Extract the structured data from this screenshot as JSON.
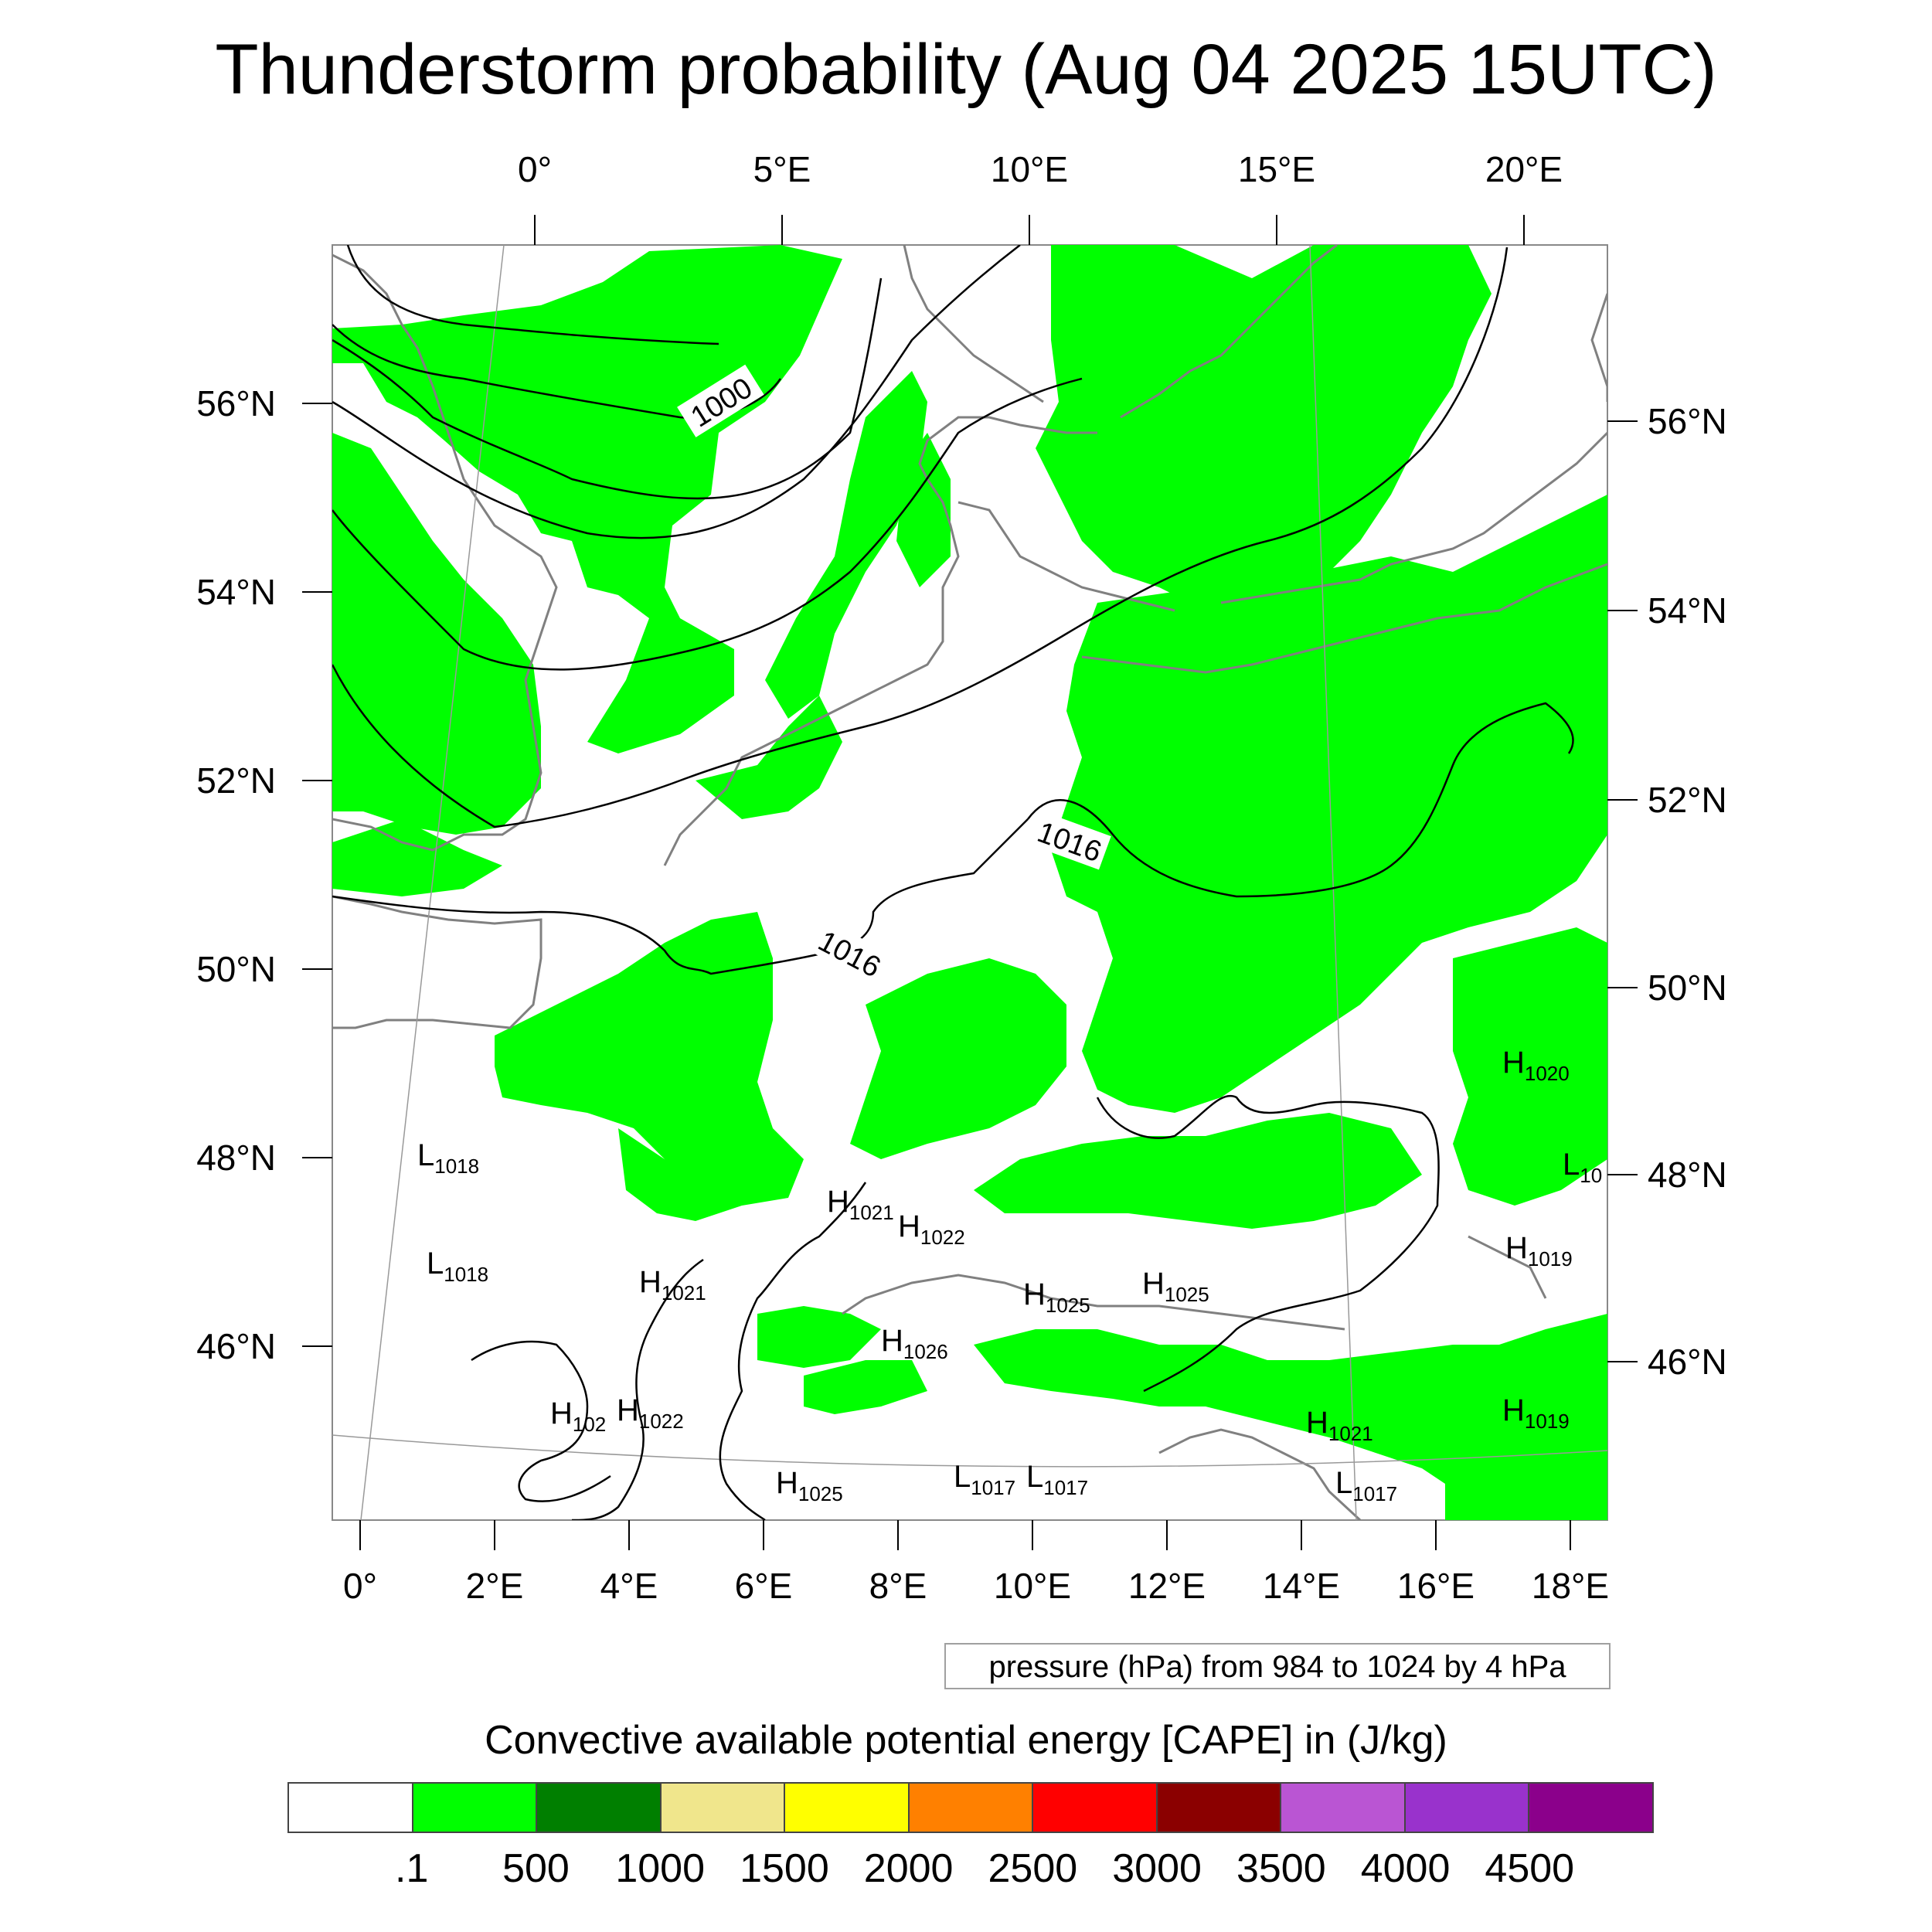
{
  "title": "Thunderstorm probability (Aug 04 2025 15UTC)",
  "axes": {
    "top_lon_labels": [
      "0°",
      "5°E",
      "10°E",
      "15°E",
      "20°E"
    ],
    "bottom_lon_labels": [
      "0°",
      "2°E",
      "4°E",
      "6°E",
      "8°E",
      "10°E",
      "12°E",
      "14°E",
      "16°E",
      "18°E"
    ],
    "left_lat_labels": [
      "56°N",
      "54°N",
      "52°N",
      "50°N",
      "48°N",
      "46°N"
    ],
    "right_lat_labels": [
      "56°N",
      "54°N",
      "52°N",
      "50°N",
      "48°N",
      "46°N"
    ]
  },
  "contour_labels": [
    "1000",
    "1016",
    "1016"
  ],
  "pressure_markers": [
    {
      "letter": "L",
      "value": "1018"
    },
    {
      "letter": "L",
      "value": "1018"
    },
    {
      "letter": "H",
      "value": "1021"
    },
    {
      "letter": "H",
      "value": "1022"
    },
    {
      "letter": "H",
      "value": "1021"
    },
    {
      "letter": "H",
      "value": "1025"
    },
    {
      "letter": "H",
      "value": "1025"
    },
    {
      "letter": "H",
      "value": "1026"
    },
    {
      "letter": "H",
      "value": "102"
    },
    {
      "letter": "H",
      "value": "1022"
    },
    {
      "letter": "H",
      "value": "1025"
    },
    {
      "letter": "L",
      "value": "1017"
    },
    {
      "letter": "L",
      "value": "1017"
    },
    {
      "letter": "H",
      "value": "1020"
    },
    {
      "letter": "L",
      "value": "10"
    },
    {
      "letter": "H",
      "value": "1019"
    },
    {
      "letter": "H",
      "value": "1019"
    },
    {
      "letter": "H",
      "value": "1021"
    },
    {
      "letter": "L",
      "value": "1017"
    }
  ],
  "contour_info": "pressure (hPa) from 984 to 1024 by 4 hPa",
  "legend": {
    "title": "Convective available potential energy [CAPE] in (J/kg)",
    "colors": [
      "#ffffff",
      "#00ff00",
      "#007f00",
      "#f0e68c",
      "#ffff00",
      "#ff8000",
      "#ff0000",
      "#8b0000",
      "#ba55d3",
      "#9932cc",
      "#8b008b"
    ],
    "labels": [
      ".1",
      "500",
      "1000",
      "1500",
      "2000",
      "2500",
      "3000",
      "3500",
      "4000",
      "4500"
    ]
  },
  "colors": {
    "cape_fill": "#00ff00",
    "coastline": "#808080",
    "isobar": "#000000"
  }
}
